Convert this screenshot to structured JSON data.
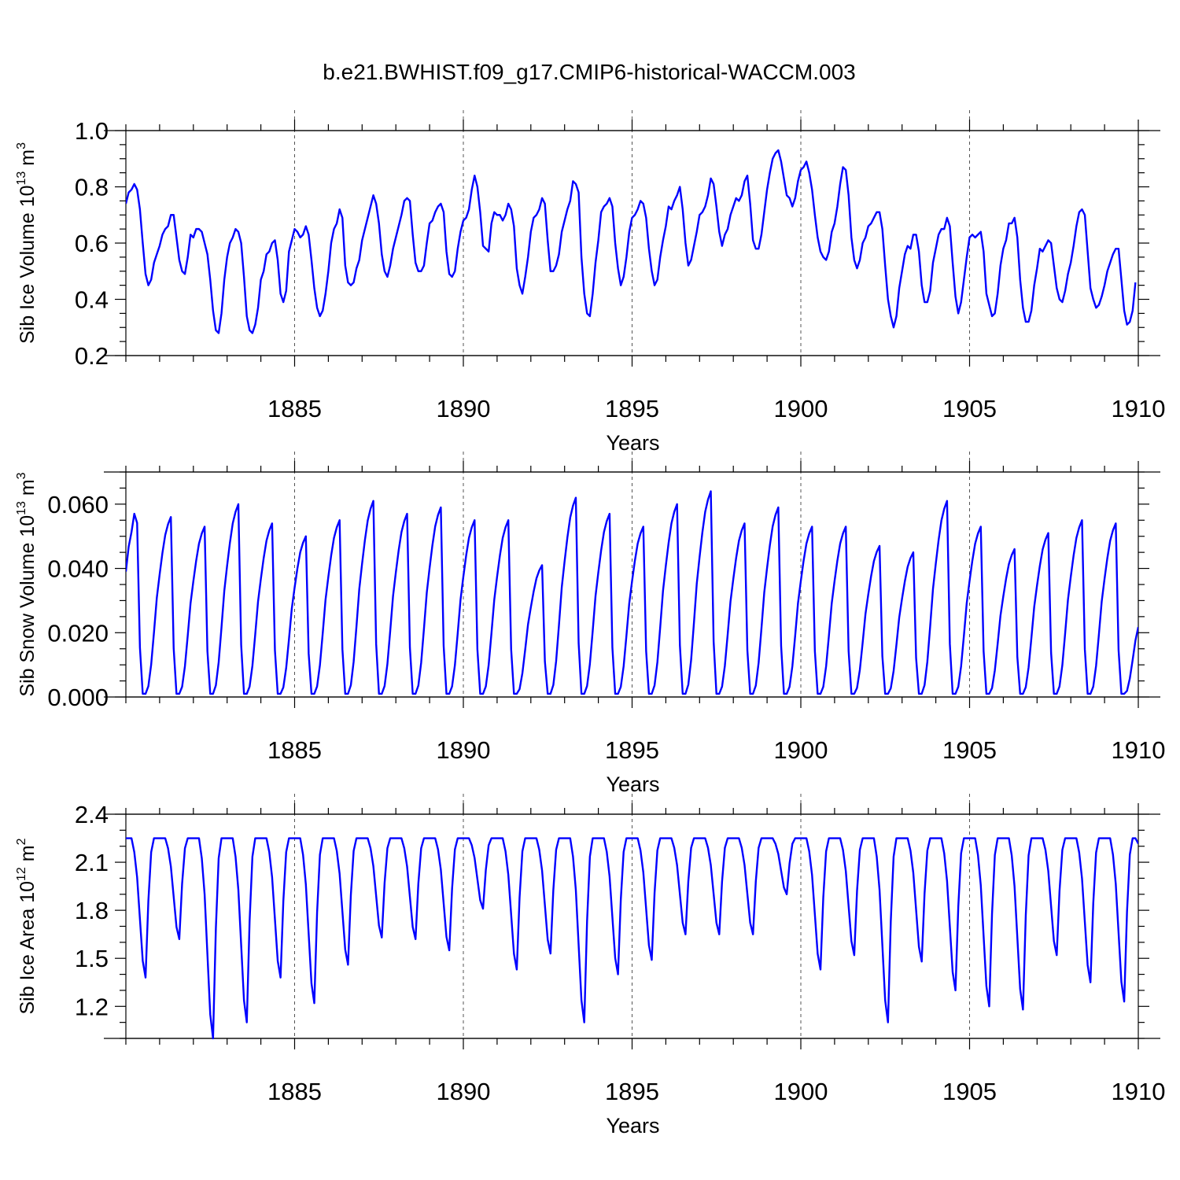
{
  "title": "b.e21.BWHIST.f09_g17.CMIP6-historical-WACCM.003",
  "chart_data": [
    {
      "type": "line",
      "ylabel": "Sib Ice Volume 10",
      "ylabel_sup": "13",
      "ylabel_unit": " m",
      "ylabel_unit_sup": "3",
      "xlabel": "Years",
      "xlim": [
        1880.0,
        1910.0
      ],
      "ylim": [
        0.2,
        1.0
      ],
      "xticks": [
        1885,
        1890,
        1895,
        1900,
        1905,
        1910
      ],
      "xtick_labels": [
        "1885",
        "1890",
        "1895",
        "1900",
        "1905",
        "1910"
      ],
      "yticks": [
        0.2,
        0.4,
        0.6,
        0.8,
        1.0
      ],
      "ytick_labels": [
        "0.2",
        "0.4",
        "0.6",
        "0.8",
        "1.0"
      ],
      "yminor": 0.05,
      "grid": "dashed vertical lines at 5-year ticks",
      "series": [
        {
          "name": "Sib Ice Volume",
          "x_start": 1880.0,
          "x_step": 0.08333,
          "values": [
            0.74,
            0.78,
            0.79,
            0.81,
            0.79,
            0.72,
            0.6,
            0.49,
            0.45,
            0.47,
            0.53,
            0.56,
            0.59,
            0.63,
            0.65,
            0.66,
            0.7,
            0.7,
            0.62,
            0.54,
            0.5,
            0.49,
            0.55,
            0.63,
            0.62,
            0.65,
            0.65,
            0.64,
            0.6,
            0.56,
            0.47,
            0.36,
            0.29,
            0.28,
            0.35,
            0.47,
            0.55,
            0.6,
            0.62,
            0.65,
            0.64,
            0.6,
            0.48,
            0.34,
            0.29,
            0.28,
            0.31,
            0.37,
            0.47,
            0.5,
            0.56,
            0.57,
            0.6,
            0.61,
            0.54,
            0.42,
            0.39,
            0.43,
            0.57,
            0.61,
            0.65,
            0.64,
            0.62,
            0.63,
            0.66,
            0.63,
            0.54,
            0.44,
            0.37,
            0.34,
            0.36,
            0.42,
            0.5,
            0.6,
            0.65,
            0.67,
            0.72,
            0.69,
            0.52,
            0.46,
            0.45,
            0.46,
            0.51,
            0.54,
            0.61,
            0.65,
            0.69,
            0.73,
            0.77,
            0.74,
            0.67,
            0.56,
            0.5,
            0.48,
            0.52,
            0.58,
            0.62,
            0.66,
            0.7,
            0.75,
            0.76,
            0.75,
            0.63,
            0.53,
            0.5,
            0.5,
            0.52,
            0.6,
            0.67,
            0.68,
            0.71,
            0.73,
            0.74,
            0.71,
            0.57,
            0.49,
            0.48,
            0.5,
            0.58,
            0.64,
            0.68,
            0.69,
            0.72,
            0.79,
            0.84,
            0.8,
            0.71,
            0.59,
            0.58,
            0.57,
            0.67,
            0.71,
            0.7,
            0.7,
            0.68,
            0.7,
            0.74,
            0.72,
            0.66,
            0.51,
            0.45,
            0.42,
            0.48,
            0.55,
            0.64,
            0.69,
            0.7,
            0.72,
            0.76,
            0.74,
            0.61,
            0.5,
            0.5,
            0.52,
            0.56,
            0.64,
            0.68,
            0.72,
            0.75,
            0.82,
            0.81,
            0.78,
            0.55,
            0.42,
            0.35,
            0.34,
            0.42,
            0.53,
            0.61,
            0.71,
            0.73,
            0.74,
            0.76,
            0.73,
            0.6,
            0.51,
            0.45,
            0.48,
            0.55,
            0.64,
            0.69,
            0.7,
            0.72,
            0.75,
            0.74,
            0.69,
            0.58,
            0.5,
            0.45,
            0.47,
            0.55,
            0.61,
            0.66,
            0.73,
            0.72,
            0.75,
            0.77,
            0.8,
            0.72,
            0.6,
            0.52,
            0.54,
            0.59,
            0.64,
            0.7,
            0.71,
            0.73,
            0.77,
            0.83,
            0.81,
            0.73,
            0.64,
            0.59,
            0.63,
            0.65,
            0.7,
            0.73,
            0.76,
            0.75,
            0.77,
            0.82,
            0.84,
            0.74,
            0.61,
            0.58,
            0.58,
            0.63,
            0.71,
            0.79,
            0.85,
            0.9,
            0.92,
            0.93,
            0.89,
            0.83,
            0.77,
            0.76,
            0.73,
            0.76,
            0.82,
            0.86,
            0.87,
            0.89,
            0.85,
            0.79,
            0.7,
            0.62,
            0.57,
            0.55,
            0.54,
            0.57,
            0.64,
            0.67,
            0.73,
            0.81,
            0.87,
            0.86,
            0.77,
            0.62,
            0.54,
            0.51,
            0.54,
            0.6,
            0.62,
            0.66,
            0.67,
            0.69,
            0.71,
            0.71,
            0.65,
            0.52,
            0.4,
            0.34,
            0.3,
            0.34,
            0.44,
            0.5,
            0.56,
            0.59,
            0.58,
            0.63,
            0.63,
            0.57,
            0.45,
            0.39,
            0.39,
            0.43,
            0.53,
            0.58,
            0.63,
            0.65,
            0.65,
            0.69,
            0.66,
            0.53,
            0.41,
            0.35,
            0.39,
            0.47,
            0.55,
            0.62,
            0.63,
            0.62,
            0.63,
            0.64,
            0.57,
            0.42,
            0.38,
            0.34,
            0.35,
            0.42,
            0.52,
            0.58,
            0.61,
            0.67,
            0.67,
            0.69,
            0.62,
            0.47,
            0.37,
            0.32,
            0.32,
            0.36,
            0.45,
            0.51,
            0.58,
            0.57,
            0.59,
            0.61,
            0.6,
            0.52,
            0.44,
            0.4,
            0.39,
            0.43,
            0.49,
            0.53,
            0.59,
            0.66,
            0.71,
            0.72,
            0.7,
            0.57,
            0.44,
            0.4,
            0.37,
            0.38,
            0.41,
            0.45,
            0.5,
            0.53,
            0.56,
            0.58,
            0.58,
            0.47,
            0.36,
            0.31,
            0.32,
            0.36,
            0.46
          ]
        }
      ]
    },
    {
      "type": "line",
      "ylabel": "Sib Snow Volume 10",
      "ylabel_sup": "13",
      "ylabel_unit": " m",
      "ylabel_unit_sup": "3",
      "xlabel": "Years",
      "xlim": [
        1880.0,
        1910.0
      ],
      "ylim": [
        0.0,
        0.07
      ],
      "xticks": [
        1885,
        1890,
        1895,
        1900,
        1905,
        1910
      ],
      "xtick_labels": [
        "1885",
        "1890",
        "1895",
        "1900",
        "1905",
        "1910"
      ],
      "yticks": [
        0.0,
        0.02,
        0.04,
        0.06
      ],
      "ytick_labels": [
        "0.000",
        "0.020",
        "0.040",
        "0.060"
      ],
      "yminor": 0.005,
      "grid": "dashed vertical lines at 5-year ticks",
      "series": [
        {
          "name": "Sib Snow Volume",
          "x_start": 1880.0,
          "x_step": 0.08333,
          "peaks": [
            0.057,
            0.056,
            0.053,
            0.06,
            0.054,
            0.05,
            0.055,
            0.061,
            0.057,
            0.059,
            0.055,
            0.055,
            0.041,
            0.062,
            0.057,
            0.053,
            0.06,
            0.064,
            0.054,
            0.059,
            0.053,
            0.053,
            0.047,
            0.045,
            0.061,
            0.053,
            0.046,
            0.051,
            0.055,
            0.054
          ],
          "peak_month_offset": 5,
          "trough": 0.001,
          "start_value": 0.039
        }
      ]
    },
    {
      "type": "line",
      "ylabel": "Sib Ice Area 10",
      "ylabel_sup": "12",
      "ylabel_unit": " m",
      "ylabel_unit_sup": "2",
      "xlabel": "Years",
      "xlim": [
        1880.0,
        1910.0
      ],
      "ylim": [
        1.0,
        2.4
      ],
      "xticks": [
        1885,
        1890,
        1895,
        1900,
        1905,
        1910
      ],
      "xtick_labels": [
        "1885",
        "1890",
        "1895",
        "1900",
        "1905",
        "1910"
      ],
      "yticks": [
        1.2,
        1.5,
        1.8,
        2.1,
        2.4
      ],
      "ytick_labels": [
        "1.2",
        "1.5",
        "1.8",
        "2.1",
        "2.4"
      ],
      "yminor": 0.1,
      "grid": "dashed vertical lines at 5-year ticks",
      "series": [
        {
          "name": "Sib Ice Area",
          "x_start": 1880.0,
          "x_step": 0.08333,
          "plateau": 2.25,
          "minima": [
            1.38,
            1.62,
            1.0,
            1.1,
            1.38,
            1.22,
            1.46,
            1.63,
            1.62,
            1.55,
            1.81,
            1.43,
            1.53,
            1.1,
            1.4,
            1.49,
            1.65,
            1.65,
            1.65,
            1.9,
            1.43,
            1.52,
            1.1,
            1.48,
            1.3,
            1.2,
            1.18,
            1.52,
            1.35,
            1.23
          ],
          "min_month_offset": 8
        }
      ]
    }
  ]
}
